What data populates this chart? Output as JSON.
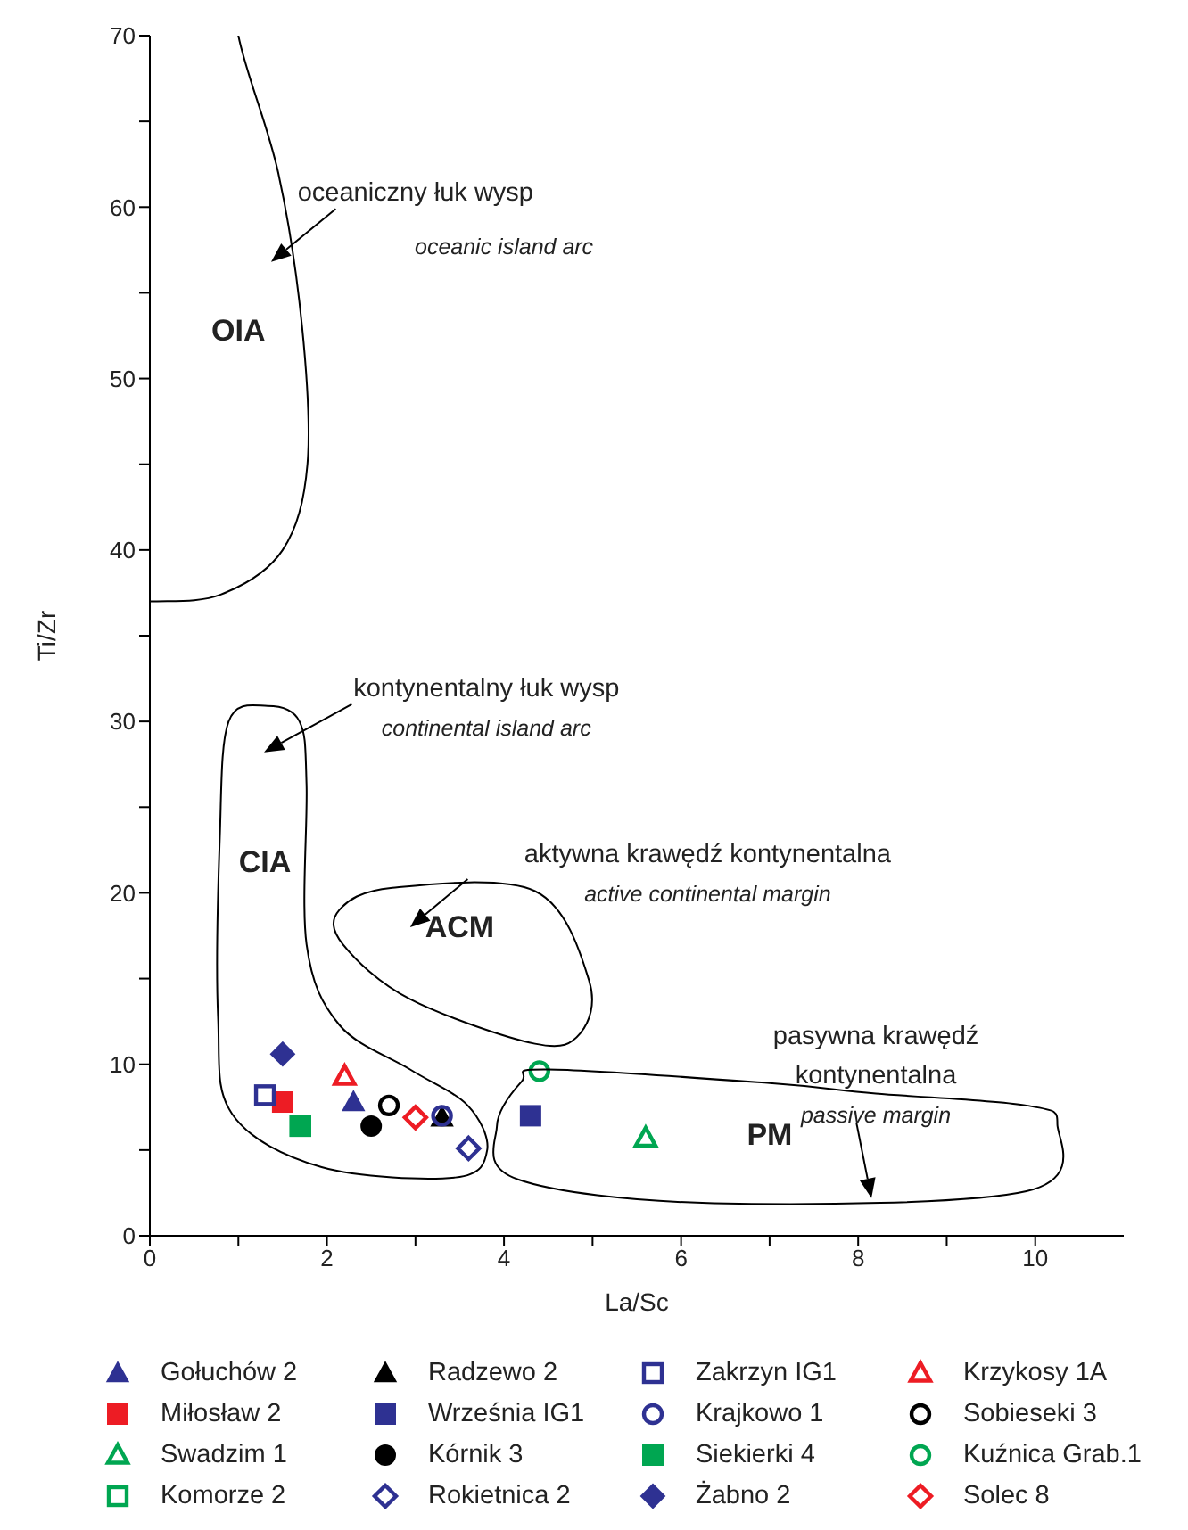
{
  "chart_data": {
    "type": "scatter",
    "xlabel": "La/Sc",
    "ylabel": "Ti/Zr",
    "xlim": [
      0,
      11
    ],
    "ylim": [
      0,
      70
    ],
    "xticks": [
      0,
      {
        "value": 1,
        "label": null
      },
      2,
      {
        "value": 3,
        "label": null
      },
      4,
      {
        "value": 5,
        "label": null
      },
      6,
      {
        "value": 7,
        "label": null
      },
      8,
      {
        "value": 9,
        "label": null
      },
      10
    ],
    "yticks": [
      0,
      {
        "value": 5,
        "label": null
      },
      10,
      {
        "value": 15,
        "label": null
      },
      20,
      {
        "value": 25,
        "label": null
      },
      30,
      {
        "value": 35,
        "label": null
      },
      40,
      {
        "value": 45,
        "label": null
      },
      50,
      {
        "value": 55,
        "label": null
      },
      60,
      {
        "value": 65,
        "label": null
      },
      70
    ],
    "legend": "bottom",
    "series": [
      {
        "name": "Gołuchów 2",
        "color": "#2e3192",
        "marker": "triangle",
        "x": [
          2.3
        ],
        "values": [
          7.8
        ]
      },
      {
        "name": "Miłosław 2",
        "color": "#ed1c24",
        "marker": "square",
        "x": [
          1.5
        ],
        "values": [
          7.8
        ]
      },
      {
        "name": "Swadzim 1",
        "color": "#00a651",
        "marker": "triangle",
        "x": [
          5.6
        ],
        "values": [
          5.7
        ]
      },
      {
        "name": "Komorze 2",
        "color": "#00a651",
        "marker": "square",
        "x": [
          1.7
        ],
        "values": [
          6.4
        ]
      },
      {
        "name": "Radzewo 2",
        "color": "#000000",
        "marker": "triangle",
        "x": [
          3.3
        ],
        "values": [
          6.9
        ]
      },
      {
        "name": "Września IG1",
        "color": "#2e3192",
        "marker": "square",
        "x": [
          4.3
        ],
        "values": [
          7.0
        ]
      },
      {
        "name": "Kórnik 3",
        "color": "#000000",
        "marker": "circle",
        "x": [
          2.5
        ],
        "values": [
          6.4
        ]
      },
      {
        "name": "Rokietnica 2",
        "color": "#2e3192",
        "marker": "diamond",
        "x": [
          3.6
        ],
        "values": [
          5.1
        ]
      },
      {
        "name": "Zakrzyn IG1",
        "color": "#2e3192",
        "marker": "square",
        "x": [
          1.3
        ],
        "values": [
          8.2
        ]
      },
      {
        "name": "Krajkowo 1",
        "color": "#2e3192",
        "marker": "circle",
        "x": [
          3.3
        ],
        "values": [
          7.0
        ]
      },
      {
        "name": "Siekierki 4",
        "color": "#00a651",
        "marker": "square",
        "x": [
          1.7
        ],
        "values": [
          6.4
        ]
      },
      {
        "name": "Żabno 2",
        "color": "#2e3192",
        "marker": "diamond",
        "x": [
          1.5
        ],
        "values": [
          10.6
        ]
      },
      {
        "name": "Krzykosy 1A",
        "color": "#ed1c24",
        "marker": "triangle",
        "x": [
          2.2
        ],
        "values": [
          9.3
        ]
      },
      {
        "name": "Sobieseki 3",
        "color": "#000000",
        "marker": "circle",
        "x": [
          2.7
        ],
        "values": [
          7.6
        ]
      },
      {
        "name": "Kuźnica Grab.1",
        "color": "#00a651",
        "marker": "circle",
        "x": [
          4.4
        ],
        "values": [
          9.6
        ]
      },
      {
        "name": "Solec 8",
        "color": "#ed1c24",
        "marker": "diamond",
        "x": [
          3.0
        ],
        "values": [
          6.9
        ]
      }
    ],
    "annotations": [
      "oceaniczny łuk wysp",
      "oceanic island arc",
      "OIA",
      "kontynentalny łuk wysp",
      "continental island arc",
      "CIA",
      "aktywna krawędź kontynentalna",
      "active continental margin",
      "ACM",
      "pasywna krawędź",
      "kontynentalna",
      "passive margin",
      "PM"
    ]
  }
}
